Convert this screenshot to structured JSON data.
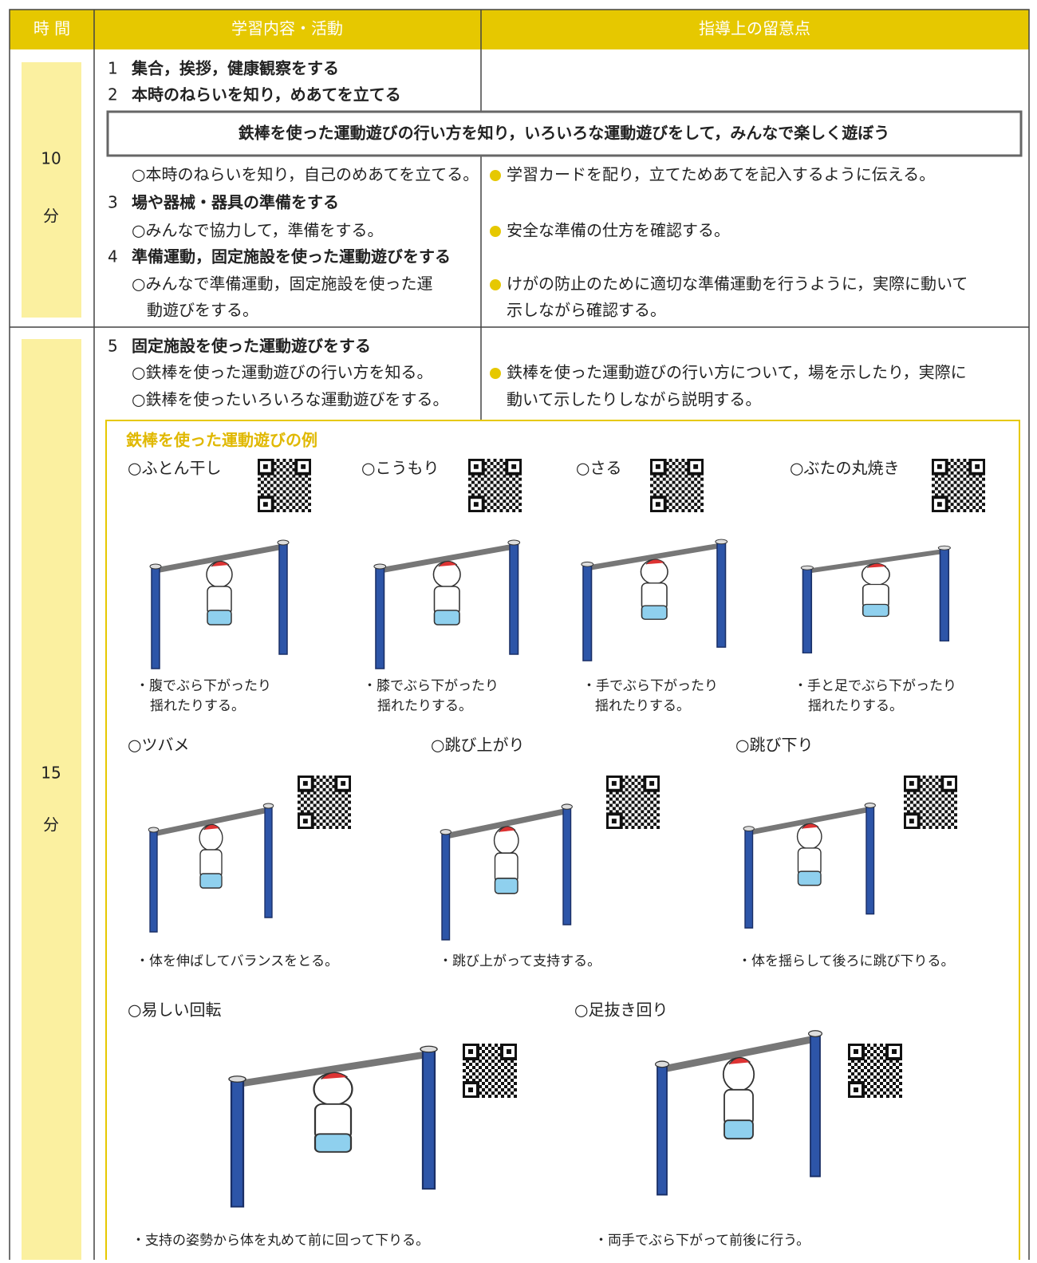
{
  "header": {
    "time": "時 間",
    "content": "学習内容・活動",
    "notes": "指導上の留意点"
  },
  "rows": [
    {
      "time": {
        "minutes": "10",
        "unit": "分"
      },
      "content": [
        {
          "number": "1",
          "text": "集合，挨拶，健康観察をする"
        },
        {
          "number": "2",
          "text": "本時のねらいを知り，めあてを立てる"
        },
        {
          "text": "○本時のねらいを知り，自己のめあてを立てる。"
        },
        {
          "number": "3",
          "text": "場や器械・器具の準備をする"
        },
        {
          "text": "○みんなで協力して，準備をする。"
        },
        {
          "number": "4",
          "text": "準備運動，固定施設を使った運動遊びをする"
        },
        {
          "text": "○みんなで準備運動，固定施設を使った運"
        },
        {
          "text": "動遊びをする。"
        }
      ],
      "goal": "鉄棒を使った運動遊びの行い方を知り，いろいろな運動遊びをして，みんなで楽しく遊ぼう",
      "notes": [
        "学習カードを配り，立てためあてを記入するように伝える。",
        "安全な準備の仕方を確認する。",
        "けがの防止のために適切な準備運動を行うように，実際に動いて",
        "示しながら確認する。"
      ]
    },
    {
      "time": {
        "minutes": "15",
        "unit": "分"
      },
      "content": [
        {
          "number": "5",
          "text": "固定施設を使った運動遊びをする"
        },
        {
          "text": "○鉄棒を使った運動遊びの行い方を知る。"
        },
        {
          "text": "○鉄棒を使ったいろいろな運動遊びをする。"
        }
      ],
      "notes": [
        "鉄棒を使った運動遊びの行い方について，場を示したり，実際に",
        "動いて示したりしながら説明する。"
      ],
      "examples": {
        "title": "鉄棒を使った運動遊びの例",
        "items": [
          {
            "name": "○ふとん干し",
            "caption": [
              "・腹でぶら下がったり",
              "揺れたりする。"
            ]
          },
          {
            "name": "○こうもり",
            "caption": [
              "・膝でぶら下がったり",
              "揺れたりする。"
            ]
          },
          {
            "name": "○さる",
            "caption": [
              "・手でぶら下がったり",
              "揺れたりする。"
            ]
          },
          {
            "name": "○ぶたの丸焼き",
            "caption": [
              "・手と足でぶら下がったり",
              "揺れたりする。"
            ]
          },
          {
            "name": "○ツバメ",
            "caption": [
              "・体を伸ばしてバランスをとる。"
            ]
          },
          {
            "name": "○跳び上がり",
            "caption": [
              "・跳び上がって支持する。"
            ]
          },
          {
            "name": "○跳び下り",
            "caption": [
              "・体を揺らして後ろに跳び下りる。"
            ]
          },
          {
            "name": "○易しい回転",
            "caption": [
              "・支持の姿勢から体を丸めて前に回って下りる。"
            ]
          },
          {
            "name": "○足抜き回り",
            "caption": [
              "・両手でぶら下がって前後に行う。"
            ]
          }
        ]
      }
    }
  ]
}
